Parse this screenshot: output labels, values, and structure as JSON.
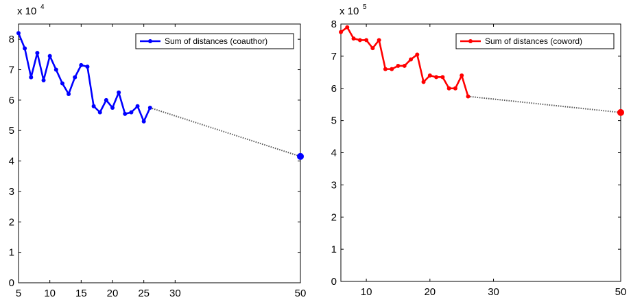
{
  "chart_data": [
    {
      "type": "line",
      "xlim": [
        5,
        50
      ],
      "ylim": [
        0,
        8.5
      ],
      "xticks": [
        "5",
        "10",
        "15",
        "20",
        "25",
        "30",
        "50"
      ],
      "xtick_values": [
        5,
        10,
        15,
        20,
        25,
        30,
        50
      ],
      "yticks": [
        "0",
        "1",
        "2",
        "3",
        "4",
        "5",
        "6",
        "7",
        "8"
      ],
      "ytick_values": [
        0,
        1,
        2,
        3,
        4,
        5,
        6,
        7,
        8
      ],
      "scale_base": "x 10",
      "scale_exp": "4",
      "legend_position": "top-right",
      "series": [
        {
          "name": "Sum of distances (coauthor)",
          "color": "#0000ff",
          "x": [
            5,
            6,
            7,
            8,
            9,
            10,
            11,
            12,
            13,
            14,
            15,
            16,
            17,
            18,
            19,
            20,
            21,
            22,
            23,
            24,
            25,
            26
          ],
          "y": [
            8.2,
            7.7,
            6.75,
            7.55,
            6.65,
            7.45,
            7.0,
            6.55,
            6.2,
            6.75,
            7.15,
            7.1,
            5.8,
            5.6,
            6.0,
            5.75,
            6.25,
            5.55,
            5.6,
            5.8,
            5.3,
            5.75
          ],
          "marker": true
        }
      ],
      "extrapolation": {
        "from": [
          26,
          5.75
        ],
        "to": [
          50,
          4.15
        ],
        "color": "#555555"
      }
    },
    {
      "type": "line",
      "xlim": [
        6,
        50
      ],
      "ylim": [
        0,
        8
      ],
      "xticks": [
        "10",
        "20",
        "30",
        "50"
      ],
      "xtick_values": [
        10,
        20,
        30,
        50
      ],
      "yticks": [
        "0",
        "1",
        "2",
        "3",
        "4",
        "5",
        "6",
        "7",
        "8"
      ],
      "ytick_values": [
        0,
        1,
        2,
        3,
        4,
        5,
        6,
        7,
        8
      ],
      "scale_base": "x 10",
      "scale_exp": "5",
      "legend_position": "top-right",
      "series": [
        {
          "name": "Sum of distances (coword)",
          "color": "#ff0000",
          "x": [
            6,
            7,
            8,
            9,
            10,
            11,
            12,
            13,
            14,
            15,
            16,
            17,
            18,
            19,
            20,
            21,
            22,
            23,
            24,
            25,
            26
          ],
          "y": [
            7.75,
            7.9,
            7.55,
            7.5,
            7.5,
            7.25,
            7.5,
            6.6,
            6.6,
            6.7,
            6.7,
            6.9,
            7.05,
            6.2,
            6.4,
            6.35,
            6.35,
            6.0,
            6.0,
            6.4,
            5.75
          ],
          "marker": true
        }
      ],
      "extrapolation": {
        "from": [
          26,
          5.75
        ],
        "to": [
          50,
          5.25
        ],
        "color": "#555555"
      }
    }
  ]
}
